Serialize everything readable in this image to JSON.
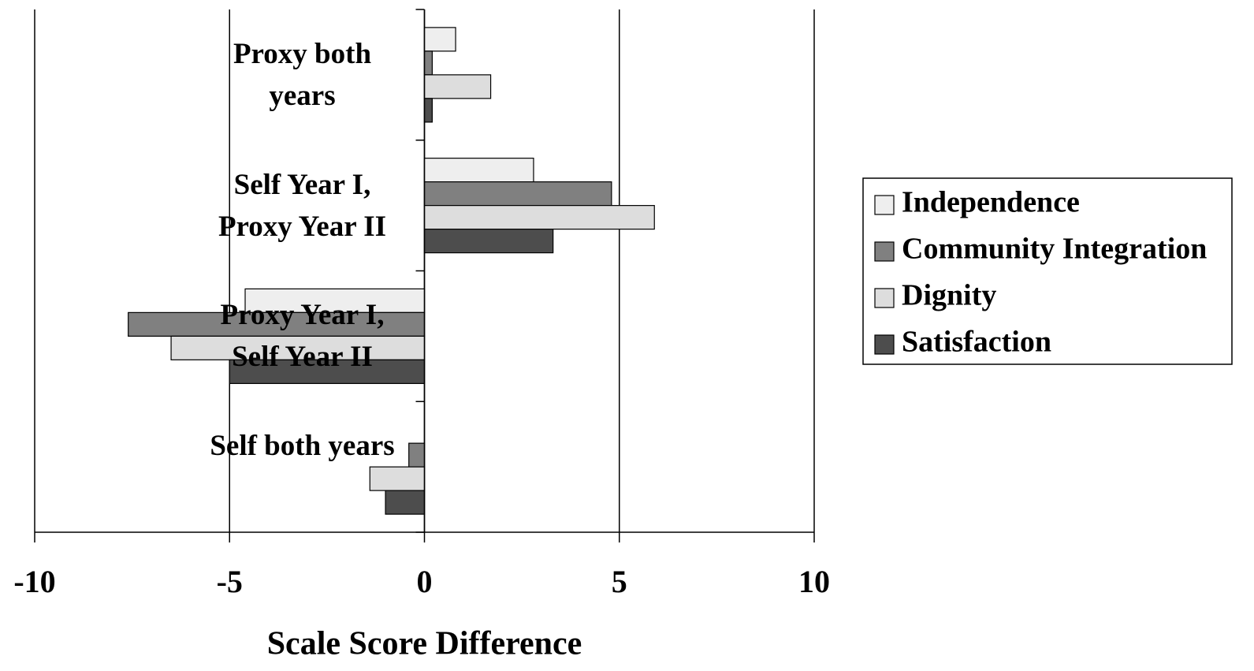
{
  "chart_data": {
    "type": "hbar",
    "xlabel": "Scale Score Difference",
    "categories": [
      "Proxy both years",
      "Self Year I, Proxy Year II",
      "Proxy Year I, Self Year II",
      "Self both years"
    ],
    "series": [
      {
        "name": "Independence",
        "color": "#eeeeee",
        "values": [
          0.8,
          2.8,
          -4.6,
          0
        ]
      },
      {
        "name": "Community Integration",
        "color": "#808080",
        "values": [
          0.2,
          4.8,
          -7.6,
          -0.4
        ]
      },
      {
        "name": "Dignity",
        "color": "#dddddd",
        "values": [
          1.7,
          5.9,
          -6.5,
          -1.4
        ]
      },
      {
        "name": "Satisfaction",
        "color": "#4d4d4d",
        "values": [
          0.2,
          3.3,
          -5.0,
          -1.0
        ]
      }
    ],
    "xlim": [
      -10,
      10
    ],
    "xticks": [
      -10,
      -5,
      0,
      5,
      10
    ],
    "grid": true,
    "legend": "right"
  }
}
